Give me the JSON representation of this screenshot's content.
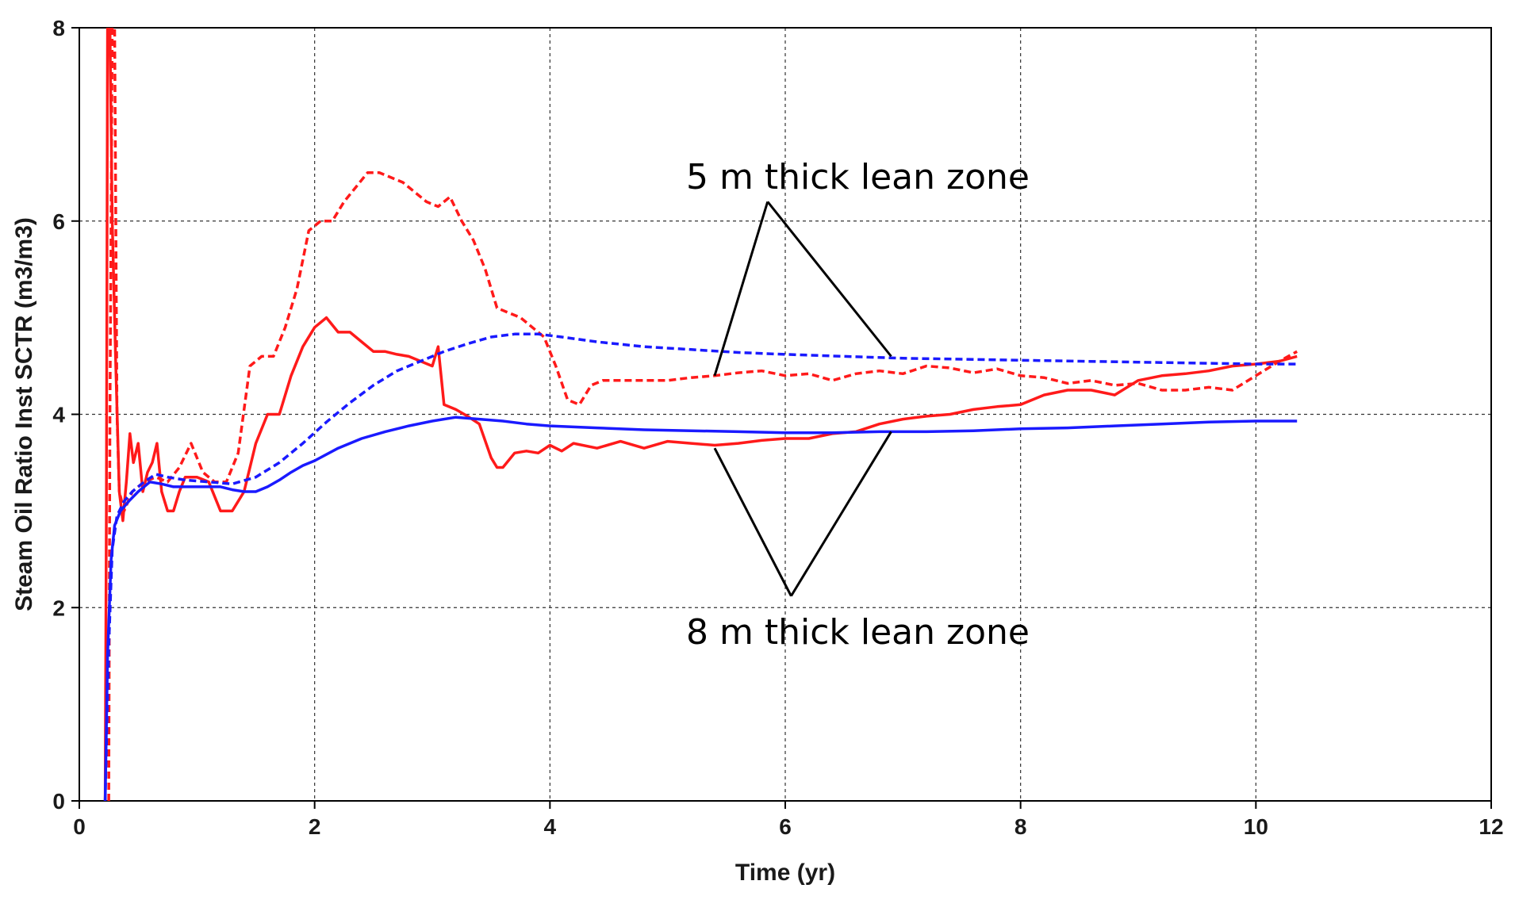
{
  "chart_data": {
    "type": "line",
    "title": "",
    "xlabel": "Time (yr)",
    "ylabel": "Steam Oil Ratio Inst SCTR (m3/m3)",
    "xlim": [
      0,
      12
    ],
    "ylim": [
      0,
      8
    ],
    "xticks": [
      0,
      2,
      4,
      6,
      8,
      10,
      12
    ],
    "yticks": [
      0,
      2,
      4,
      6,
      8
    ],
    "grid": true,
    "colors": {
      "red": "#ff1a1a",
      "blue": "#1a1aff",
      "grid": "#333333",
      "axis": "#000000"
    },
    "series": [
      {
        "name": "red-dashed",
        "color": "#ff1a1a",
        "dash": true,
        "points": [
          [
            0.25,
            0
          ],
          [
            0.26,
            4
          ],
          [
            0.28,
            8
          ],
          [
            0.3,
            8
          ],
          [
            0.32,
            4
          ],
          [
            0.34,
            3.2
          ],
          [
            0.38,
            3.0
          ],
          [
            0.45,
            3.2
          ],
          [
            0.55,
            3.3
          ],
          [
            0.65,
            3.35
          ],
          [
            0.75,
            3.3
          ],
          [
            0.85,
            3.45
          ],
          [
            0.95,
            3.7
          ],
          [
            1.05,
            3.4
          ],
          [
            1.15,
            3.3
          ],
          [
            1.25,
            3.3
          ],
          [
            1.35,
            3.6
          ],
          [
            1.45,
            4.5
          ],
          [
            1.55,
            4.6
          ],
          [
            1.65,
            4.6
          ],
          [
            1.75,
            4.9
          ],
          [
            1.85,
            5.3
          ],
          [
            1.95,
            5.9
          ],
          [
            2.05,
            6.0
          ],
          [
            2.15,
            6.0
          ],
          [
            2.25,
            6.2
          ],
          [
            2.35,
            6.35
          ],
          [
            2.45,
            6.5
          ],
          [
            2.55,
            6.5
          ],
          [
            2.65,
            6.45
          ],
          [
            2.75,
            6.4
          ],
          [
            2.85,
            6.3
          ],
          [
            2.95,
            6.2
          ],
          [
            3.05,
            6.15
          ],
          [
            3.15,
            6.25
          ],
          [
            3.25,
            6.0
          ],
          [
            3.35,
            5.8
          ],
          [
            3.45,
            5.5
          ],
          [
            3.55,
            5.1
          ],
          [
            3.65,
            5.05
          ],
          [
            3.75,
            5.0
          ],
          [
            3.85,
            4.9
          ],
          [
            3.95,
            4.8
          ],
          [
            4.05,
            4.5
          ],
          [
            4.15,
            4.15
          ],
          [
            4.25,
            4.1
          ],
          [
            4.35,
            4.3
          ],
          [
            4.45,
            4.35
          ],
          [
            4.55,
            4.35
          ],
          [
            4.7,
            4.35
          ],
          [
            4.85,
            4.35
          ],
          [
            5.0,
            4.35
          ],
          [
            5.2,
            4.38
          ],
          [
            5.4,
            4.4
          ],
          [
            5.6,
            4.43
          ],
          [
            5.8,
            4.45
          ],
          [
            6.0,
            4.4
          ],
          [
            6.2,
            4.42
          ],
          [
            6.4,
            4.35
          ],
          [
            6.6,
            4.42
          ],
          [
            6.8,
            4.45
          ],
          [
            7.0,
            4.42
          ],
          [
            7.2,
            4.5
          ],
          [
            7.4,
            4.48
          ],
          [
            7.6,
            4.43
          ],
          [
            7.8,
            4.47
          ],
          [
            8.0,
            4.4
          ],
          [
            8.2,
            4.38
          ],
          [
            8.4,
            4.32
          ],
          [
            8.6,
            4.35
          ],
          [
            8.8,
            4.3
          ],
          [
            9.0,
            4.32
          ],
          [
            9.2,
            4.25
          ],
          [
            9.4,
            4.25
          ],
          [
            9.6,
            4.28
          ],
          [
            9.8,
            4.25
          ],
          [
            10.0,
            4.4
          ],
          [
            10.2,
            4.55
          ],
          [
            10.35,
            4.65
          ]
        ]
      },
      {
        "name": "red-solid",
        "color": "#ff1a1a",
        "dash": false,
        "points": [
          [
            0.22,
            0
          ],
          [
            0.23,
            3
          ],
          [
            0.24,
            8
          ],
          [
            0.26,
            8
          ],
          [
            0.28,
            6
          ],
          [
            0.31,
            4.5
          ],
          [
            0.34,
            3.2
          ],
          [
            0.37,
            2.9
          ],
          [
            0.4,
            3.3
          ],
          [
            0.43,
            3.8
          ],
          [
            0.46,
            3.5
          ],
          [
            0.5,
            3.7
          ],
          [
            0.54,
            3.2
          ],
          [
            0.58,
            3.4
          ],
          [
            0.62,
            3.5
          ],
          [
            0.66,
            3.7
          ],
          [
            0.7,
            3.2
          ],
          [
            0.75,
            3.0
          ],
          [
            0.8,
            3.0
          ],
          [
            0.85,
            3.2
          ],
          [
            0.9,
            3.35
          ],
          [
            1.0,
            3.35
          ],
          [
            1.1,
            3.3
          ],
          [
            1.2,
            3.0
          ],
          [
            1.3,
            3.0
          ],
          [
            1.4,
            3.2
          ],
          [
            1.5,
            3.7
          ],
          [
            1.6,
            4.0
          ],
          [
            1.7,
            4.0
          ],
          [
            1.8,
            4.4
          ],
          [
            1.9,
            4.7
          ],
          [
            2.0,
            4.9
          ],
          [
            2.1,
            5.0
          ],
          [
            2.2,
            4.85
          ],
          [
            2.3,
            4.85
          ],
          [
            2.4,
            4.75
          ],
          [
            2.5,
            4.65
          ],
          [
            2.6,
            4.65
          ],
          [
            2.7,
            4.62
          ],
          [
            2.8,
            4.6
          ],
          [
            2.9,
            4.55
          ],
          [
            3.0,
            4.5
          ],
          [
            3.05,
            4.7
          ],
          [
            3.1,
            4.1
          ],
          [
            3.2,
            4.05
          ],
          [
            3.3,
            3.98
          ],
          [
            3.4,
            3.9
          ],
          [
            3.5,
            3.55
          ],
          [
            3.55,
            3.45
          ],
          [
            3.6,
            3.45
          ],
          [
            3.7,
            3.6
          ],
          [
            3.8,
            3.62
          ],
          [
            3.9,
            3.6
          ],
          [
            4.0,
            3.68
          ],
          [
            4.1,
            3.62
          ],
          [
            4.2,
            3.7
          ],
          [
            4.4,
            3.65
          ],
          [
            4.6,
            3.72
          ],
          [
            4.8,
            3.65
          ],
          [
            5.0,
            3.72
          ],
          [
            5.2,
            3.7
          ],
          [
            5.4,
            3.68
          ],
          [
            5.6,
            3.7
          ],
          [
            5.8,
            3.73
          ],
          [
            6.0,
            3.75
          ],
          [
            6.2,
            3.75
          ],
          [
            6.4,
            3.8
          ],
          [
            6.6,
            3.82
          ],
          [
            6.8,
            3.9
          ],
          [
            7.0,
            3.95
          ],
          [
            7.2,
            3.98
          ],
          [
            7.4,
            4.0
          ],
          [
            7.6,
            4.05
          ],
          [
            7.8,
            4.08
          ],
          [
            8.0,
            4.1
          ],
          [
            8.2,
            4.2
          ],
          [
            8.4,
            4.25
          ],
          [
            8.6,
            4.25
          ],
          [
            8.8,
            4.2
          ],
          [
            9.0,
            4.35
          ],
          [
            9.2,
            4.4
          ],
          [
            9.4,
            4.42
          ],
          [
            9.6,
            4.45
          ],
          [
            9.8,
            4.5
          ],
          [
            10.0,
            4.52
          ],
          [
            10.2,
            4.55
          ],
          [
            10.35,
            4.6
          ]
        ]
      },
      {
        "name": "blue-dashed",
        "color": "#1a1aff",
        "dash": true,
        "points": [
          [
            0.22,
            0
          ],
          [
            0.25,
            1.6
          ],
          [
            0.28,
            2.6
          ],
          [
            0.32,
            2.95
          ],
          [
            0.38,
            3.1
          ],
          [
            0.45,
            3.2
          ],
          [
            0.55,
            3.3
          ],
          [
            0.65,
            3.38
          ],
          [
            0.75,
            3.35
          ],
          [
            0.9,
            3.32
          ],
          [
            1.1,
            3.3
          ],
          [
            1.3,
            3.28
          ],
          [
            1.5,
            3.35
          ],
          [
            1.7,
            3.5
          ],
          [
            1.9,
            3.7
          ],
          [
            2.1,
            3.92
          ],
          [
            2.3,
            4.12
          ],
          [
            2.5,
            4.3
          ],
          [
            2.7,
            4.45
          ],
          [
            2.9,
            4.55
          ],
          [
            3.1,
            4.65
          ],
          [
            3.3,
            4.73
          ],
          [
            3.5,
            4.8
          ],
          [
            3.7,
            4.83
          ],
          [
            3.9,
            4.83
          ],
          [
            4.1,
            4.8
          ],
          [
            4.4,
            4.75
          ],
          [
            4.8,
            4.7
          ],
          [
            5.2,
            4.67
          ],
          [
            5.6,
            4.64
          ],
          [
            6.0,
            4.62
          ],
          [
            6.5,
            4.6
          ],
          [
            7.0,
            4.58
          ],
          [
            7.5,
            4.57
          ],
          [
            8.0,
            4.56
          ],
          [
            8.5,
            4.55
          ],
          [
            9.0,
            4.54
          ],
          [
            9.5,
            4.53
          ],
          [
            10.0,
            4.52
          ],
          [
            10.35,
            4.52
          ]
        ]
      },
      {
        "name": "blue-solid",
        "color": "#1a1aff",
        "dash": false,
        "points": [
          [
            0.22,
            0
          ],
          [
            0.24,
            1.5
          ],
          [
            0.27,
            2.5
          ],
          [
            0.3,
            2.85
          ],
          [
            0.35,
            3.0
          ],
          [
            0.42,
            3.1
          ],
          [
            0.5,
            3.2
          ],
          [
            0.6,
            3.3
          ],
          [
            0.7,
            3.28
          ],
          [
            0.8,
            3.25
          ],
          [
            0.9,
            3.25
          ],
          [
            1.0,
            3.25
          ],
          [
            1.1,
            3.25
          ],
          [
            1.2,
            3.25
          ],
          [
            1.3,
            3.22
          ],
          [
            1.4,
            3.2
          ],
          [
            1.5,
            3.2
          ],
          [
            1.6,
            3.25
          ],
          [
            1.7,
            3.32
          ],
          [
            1.8,
            3.4
          ],
          [
            1.9,
            3.47
          ],
          [
            2.0,
            3.52
          ],
          [
            2.2,
            3.65
          ],
          [
            2.4,
            3.75
          ],
          [
            2.6,
            3.82
          ],
          [
            2.8,
            3.88
          ],
          [
            3.0,
            3.93
          ],
          [
            3.2,
            3.97
          ],
          [
            3.4,
            3.95
          ],
          [
            3.6,
            3.93
          ],
          [
            3.8,
            3.9
          ],
          [
            4.0,
            3.88
          ],
          [
            4.4,
            3.86
          ],
          [
            4.8,
            3.84
          ],
          [
            5.2,
            3.83
          ],
          [
            5.6,
            3.82
          ],
          [
            6.0,
            3.81
          ],
          [
            6.4,
            3.81
          ],
          [
            6.8,
            3.82
          ],
          [
            7.2,
            3.82
          ],
          [
            7.6,
            3.83
          ],
          [
            8.0,
            3.85
          ],
          [
            8.4,
            3.86
          ],
          [
            8.8,
            3.88
          ],
          [
            9.2,
            3.9
          ],
          [
            9.6,
            3.92
          ],
          [
            10.0,
            3.93
          ],
          [
            10.35,
            3.93
          ]
        ]
      }
    ],
    "annotations": [
      {
        "text": "5 m thick lean zone",
        "pointer_apex": [
          5.85,
          6.2
        ],
        "pointer_targets": [
          [
            5.4,
            4.4
          ],
          [
            6.9,
            4.6
          ]
        ]
      },
      {
        "text": "8 m thick lean zone",
        "pointer_apex": [
          6.05,
          2.12
        ],
        "pointer_targets": [
          [
            5.4,
            3.65
          ],
          [
            6.9,
            3.82
          ]
        ]
      }
    ]
  }
}
